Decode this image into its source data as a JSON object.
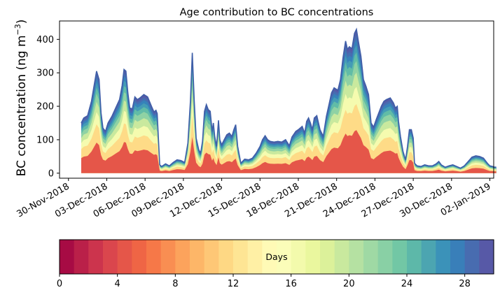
{
  "chart_data": {
    "type": "area",
    "title": "Age contribution to BC concentrations",
    "ylabel": "BC concentration (ng m⁻³)",
    "ylabel_main": "BC concentration (ng m",
    "ylabel_sup": "−3",
    "ylabel_close": ")",
    "xlabel": "",
    "ylim": [
      -15,
      455
    ],
    "xlim": [
      -0.7,
      33.3
    ],
    "y_ticks": [
      0,
      100,
      200,
      300,
      400
    ],
    "x_ticks": [
      {
        "t": 0,
        "label": "30-Nov-2018"
      },
      {
        "t": 3,
        "label": "03-Dec-2018"
      },
      {
        "t": 6,
        "label": "06-Dec-2018"
      },
      {
        "t": 9,
        "label": "09-Dec-2018"
      },
      {
        "t": 12,
        "label": "12-Dec-2018"
      },
      {
        "t": 15,
        "label": "15-Dec-2018"
      },
      {
        "t": 18,
        "label": "18-Dec-2018"
      },
      {
        "t": 21,
        "label": "21-Dec-2018"
      },
      {
        "t": 24,
        "label": "24-Dec-2018"
      },
      {
        "t": 27,
        "label": "27-Dec-2018"
      },
      {
        "t": 30,
        "label": "30-Dec-2018"
      },
      {
        "t": 33,
        "label": "02-Jan-2019"
      }
    ],
    "total_series": [
      [
        1.0,
        150
      ],
      [
        1.2,
        165
      ],
      [
        1.5,
        172
      ],
      [
        1.8,
        215
      ],
      [
        2.0,
        260
      ],
      [
        2.2,
        305
      ],
      [
        2.4,
        280
      ],
      [
        2.55,
        180
      ],
      [
        2.7,
        135
      ],
      [
        2.9,
        125
      ],
      [
        3.1,
        150
      ],
      [
        3.4,
        170
      ],
      [
        3.7,
        195
      ],
      [
        4.0,
        220
      ],
      [
        4.2,
        262
      ],
      [
        4.35,
        310
      ],
      [
        4.5,
        305
      ],
      [
        4.65,
        240
      ],
      [
        4.8,
        195
      ],
      [
        5.0,
        192
      ],
      [
        5.2,
        228
      ],
      [
        5.4,
        220
      ],
      [
        5.6,
        225
      ],
      [
        5.9,
        235
      ],
      [
        6.2,
        228
      ],
      [
        6.5,
        200
      ],
      [
        6.7,
        183
      ],
      [
        6.85,
        188
      ],
      [
        6.95,
        178
      ],
      [
        7.05,
        100
      ],
      [
        7.15,
        25
      ],
      [
        7.3,
        20
      ],
      [
        7.6,
        28
      ],
      [
        7.9,
        22
      ],
      [
        8.2,
        32
      ],
      [
        8.5,
        40
      ],
      [
        8.8,
        38
      ],
      [
        9.1,
        32
      ],
      [
        9.35,
        90
      ],
      [
        9.55,
        215
      ],
      [
        9.7,
        360
      ],
      [
        9.85,
        215
      ],
      [
        10.0,
        105
      ],
      [
        10.2,
        70
      ],
      [
        10.35,
        60
      ],
      [
        10.5,
        95
      ],
      [
        10.65,
        185
      ],
      [
        10.8,
        205
      ],
      [
        10.95,
        190
      ],
      [
        11.1,
        185
      ],
      [
        11.25,
        125
      ],
      [
        11.35,
        150
      ],
      [
        11.45,
        110
      ],
      [
        11.6,
        80
      ],
      [
        11.75,
        158
      ],
      [
        11.85,
        100
      ],
      [
        12.0,
        85
      ],
      [
        12.2,
        100
      ],
      [
        12.4,
        115
      ],
      [
        12.6,
        120
      ],
      [
        12.8,
        110
      ],
      [
        12.95,
        130
      ],
      [
        13.1,
        145
      ],
      [
        13.25,
        80
      ],
      [
        13.5,
        30
      ],
      [
        13.8,
        42
      ],
      [
        14.1,
        40
      ],
      [
        14.4,
        45
      ],
      [
        14.7,
        60
      ],
      [
        15.0,
        80
      ],
      [
        15.2,
        100
      ],
      [
        15.4,
        112
      ],
      [
        15.6,
        100
      ],
      [
        15.8,
        95
      ],
      [
        16.1,
        93
      ],
      [
        16.4,
        95
      ],
      [
        16.7,
        93
      ],
      [
        17.0,
        100
      ],
      [
        17.3,
        82
      ],
      [
        17.5,
        108
      ],
      [
        17.8,
        125
      ],
      [
        18.0,
        130
      ],
      [
        18.3,
        140
      ],
      [
        18.5,
        120
      ],
      [
        18.65,
        155
      ],
      [
        18.8,
        165
      ],
      [
        18.95,
        150
      ],
      [
        19.1,
        130
      ],
      [
        19.25,
        165
      ],
      [
        19.45,
        172
      ],
      [
        19.7,
        130
      ],
      [
        19.95,
        110
      ],
      [
        20.2,
        170
      ],
      [
        20.4,
        205
      ],
      [
        20.6,
        240
      ],
      [
        20.8,
        255
      ],
      [
        21.1,
        248
      ],
      [
        21.3,
        280
      ],
      [
        21.5,
        345
      ],
      [
        21.7,
        395
      ],
      [
        21.85,
        370
      ],
      [
        22.0,
        378
      ],
      [
        22.2,
        372
      ],
      [
        22.4,
        418
      ],
      [
        22.55,
        430
      ],
      [
        22.7,
        395
      ],
      [
        22.9,
        350
      ],
      [
        23.1,
        280
      ],
      [
        23.3,
        260
      ],
      [
        23.5,
        235
      ],
      [
        23.7,
        150
      ],
      [
        23.9,
        138
      ],
      [
        24.1,
        160
      ],
      [
        24.3,
        180
      ],
      [
        24.5,
        200
      ],
      [
        24.7,
        215
      ],
      [
        24.9,
        220
      ],
      [
        25.2,
        225
      ],
      [
        25.45,
        210
      ],
      [
        25.6,
        195
      ],
      [
        25.75,
        200
      ],
      [
        25.85,
        155
      ],
      [
        26.0,
        110
      ],
      [
        26.2,
        65
      ],
      [
        26.4,
        40
      ],
      [
        26.55,
        80
      ],
      [
        26.7,
        130
      ],
      [
        26.85,
        130
      ],
      [
        27.0,
        105
      ],
      [
        27.1,
        30
      ],
      [
        27.3,
        22
      ],
      [
        27.6,
        20
      ],
      [
        27.9,
        25
      ],
      [
        28.2,
        22
      ],
      [
        28.5,
        22
      ],
      [
        28.8,
        28
      ],
      [
        29.0,
        35
      ],
      [
        29.2,
        25
      ],
      [
        29.5,
        18
      ],
      [
        29.8,
        22
      ],
      [
        30.1,
        25
      ],
      [
        30.4,
        20
      ],
      [
        30.7,
        15
      ],
      [
        31.0,
        22
      ],
      [
        31.3,
        35
      ],
      [
        31.6,
        48
      ],
      [
        31.9,
        52
      ],
      [
        32.2,
        50
      ],
      [
        32.5,
        45
      ],
      [
        32.8,
        30
      ],
      [
        33.0,
        22
      ],
      [
        33.2,
        20
      ],
      [
        33.35,
        18
      ],
      [
        33.5,
        18
      ]
    ],
    "series_colors": [
      "#9e0142",
      "#d53e4f",
      "#f46d43",
      "#fdae61",
      "#fee08b",
      "#ffffbf",
      "#e6f598",
      "#abdda4",
      "#66c2a5",
      "#3288bd",
      "#5e4fa2"
    ],
    "colorbar": {
      "label": "Days",
      "min": 0,
      "max": 30,
      "n_bins": 30,
      "ticks": [
        0,
        4,
        8,
        12,
        16,
        20,
        24,
        28
      ]
    }
  }
}
